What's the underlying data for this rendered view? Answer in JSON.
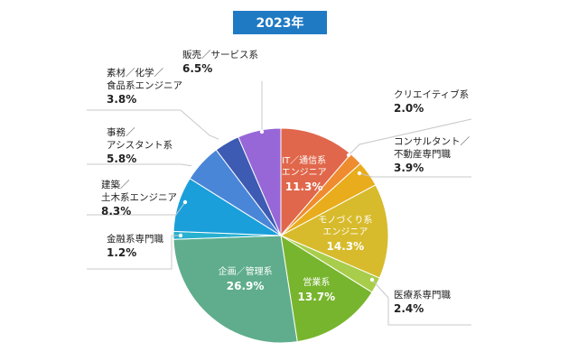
{
  "chart_data": {
    "type": "pie",
    "title": "2023年",
    "slices": [
      {
        "label": [
          "IT／通信系",
          "エンジニア"
        ],
        "value": 11.3,
        "display": "11.3%",
        "color": "#e0674b"
      },
      {
        "label": [
          "クリエイティブ系"
        ],
        "value": 2.0,
        "display": "2.0%",
        "color": "#ef8c2f"
      },
      {
        "label": [
          "コンサルタント／",
          "不動産専門職"
        ],
        "value": 3.9,
        "display": "3.9%",
        "color": "#e8ac1c"
      },
      {
        "label": [
          "モノづくり系",
          "エンジニア"
        ],
        "value": 14.3,
        "display": "14.3%",
        "color": "#d7bb2c"
      },
      {
        "label": [
          "医療系専門職"
        ],
        "value": 2.4,
        "display": "2.4%",
        "color": "#a8cd4a"
      },
      {
        "label": [
          "営業系"
        ],
        "value": 13.7,
        "display": "13.7%",
        "color": "#78b52e"
      },
      {
        "label": [
          "企画／管理系"
        ],
        "value": 26.9,
        "display": "26.9%",
        "color": "#5fad8c"
      },
      {
        "label": [
          "金融系専門職"
        ],
        "value": 1.2,
        "display": "1.2%",
        "color": "#27b0cf"
      },
      {
        "label": [
          "建築／",
          "土木系エンジニア"
        ],
        "value": 8.3,
        "display": "8.3%",
        "color": "#1a9fdb"
      },
      {
        "label": [
          "事務／",
          "アシスタント系"
        ],
        "value": 5.8,
        "display": "5.8%",
        "color": "#4a86d8"
      },
      {
        "label": [
          "素材／化学／",
          "食品系エンジニア"
        ],
        "value": 3.8,
        "display": "3.8%",
        "color": "#3d5bb3"
      },
      {
        "label": [
          "販売／サービス系"
        ],
        "value": 6.5,
        "display": "6.5%",
        "color": "#9767d7"
      }
    ]
  }
}
